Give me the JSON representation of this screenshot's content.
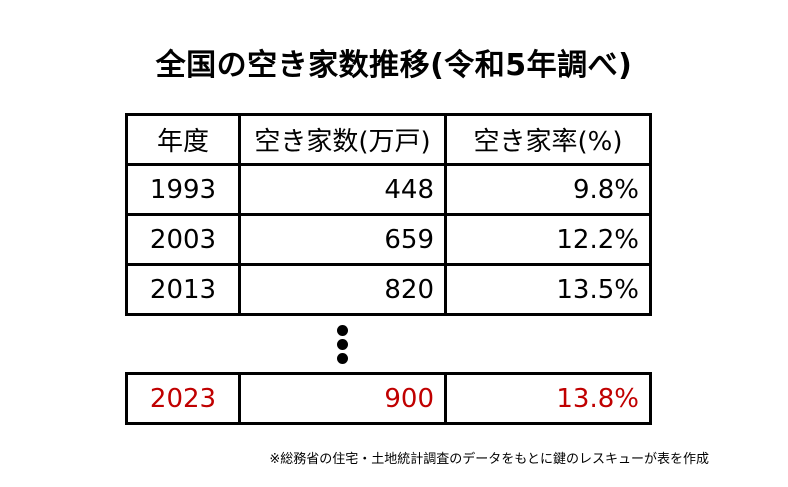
{
  "title": "全国の空き家数推移(令和5年調べ)",
  "table": {
    "headers": [
      "年度",
      "空き家数(万戸)",
      "空き家率(%)"
    ],
    "rows": [
      {
        "year": "1993",
        "count": "448",
        "rate": "9.8%"
      },
      {
        "year": "2003",
        "count": "659",
        "rate": "12.2%"
      },
      {
        "year": "2013",
        "count": "820",
        "rate": "13.5%"
      }
    ],
    "latest": {
      "year": "2023",
      "count": "900",
      "rate": "13.8%"
    }
  },
  "footnote": "※総務省の住宅・土地統計調査のデータをもとに鍵のレスキューが表を作成",
  "colors": {
    "highlight": "#c00000",
    "text": "#000000",
    "background": "#ffffff"
  }
}
